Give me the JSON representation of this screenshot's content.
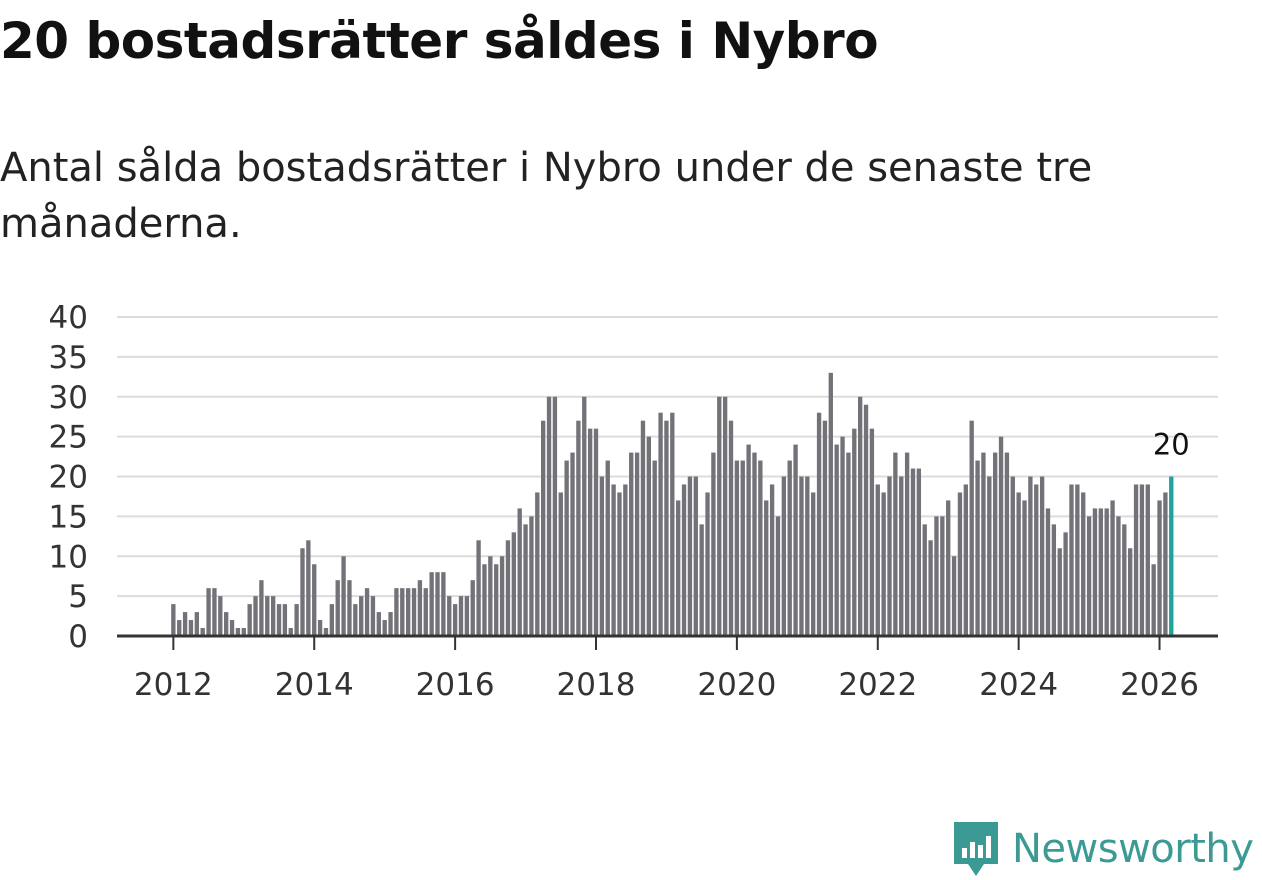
{
  "header": {
    "title": "20 bostadsrätter såldes i Nybro",
    "subtitle": "Antal sålda bostadsrätter i Nybro under de senaste tre månaderna."
  },
  "brand": {
    "name": "Newsworthy",
    "color": "#3c9a94"
  },
  "chart_data": {
    "type": "bar",
    "title": "20 bostadsrätter såldes i Nybro",
    "subtitle": "Antal sålda bostadsrätter i Nybro under de senaste tre månaderna.",
    "xlabel": "",
    "ylabel": "",
    "x_start": "2012-01",
    "x_interval": "month",
    "x_range": [
      2011.2,
      2026.83
    ],
    "ylim": [
      0,
      40
    ],
    "yticks": [
      0,
      5,
      10,
      15,
      20,
      25,
      30,
      35,
      40
    ],
    "xticks": [
      "2012",
      "2014",
      "2016",
      "2018",
      "2020",
      "2022",
      "2024",
      "2026"
    ],
    "grid": true,
    "bar_color": "#737278",
    "highlight_color": "#1ea39b",
    "highlight_last": true,
    "annotation": "20",
    "values": [
      4,
      2,
      3,
      2,
      3,
      1,
      6,
      6,
      5,
      3,
      2,
      1,
      1,
      4,
      5,
      7,
      5,
      5,
      4,
      4,
      1,
      4,
      11,
      12,
      9,
      2,
      1,
      4,
      7,
      10,
      7,
      4,
      5,
      6,
      5,
      3,
      2,
      3,
      6,
      6,
      6,
      6,
      7,
      6,
      8,
      8,
      8,
      5,
      4,
      5,
      5,
      7,
      12,
      9,
      10,
      9,
      10,
      12,
      13,
      16,
      14,
      15,
      18,
      27,
      30,
      30,
      18,
      22,
      23,
      27,
      30,
      26,
      26,
      20,
      22,
      19,
      18,
      19,
      23,
      23,
      27,
      25,
      22,
      28,
      27,
      28,
      17,
      19,
      20,
      20,
      14,
      18,
      23,
      30,
      30,
      27,
      22,
      22,
      24,
      23,
      22,
      17,
      19,
      15,
      20,
      22,
      24,
      20,
      20,
      18,
      28,
      27,
      33,
      24,
      25,
      23,
      26,
      30,
      29,
      26,
      19,
      18,
      20,
      23,
      20,
      23,
      21,
      21,
      14,
      12,
      15,
      15,
      17,
      10,
      18,
      19,
      27,
      22,
      23,
      20,
      23,
      25,
      23,
      20,
      18,
      17,
      20,
      19,
      20,
      16,
      14,
      11,
      13,
      19,
      19,
      18,
      15,
      16,
      16,
      16,
      17,
      15,
      14,
      11,
      19,
      19,
      19,
      9,
      17,
      18,
      20
    ]
  }
}
